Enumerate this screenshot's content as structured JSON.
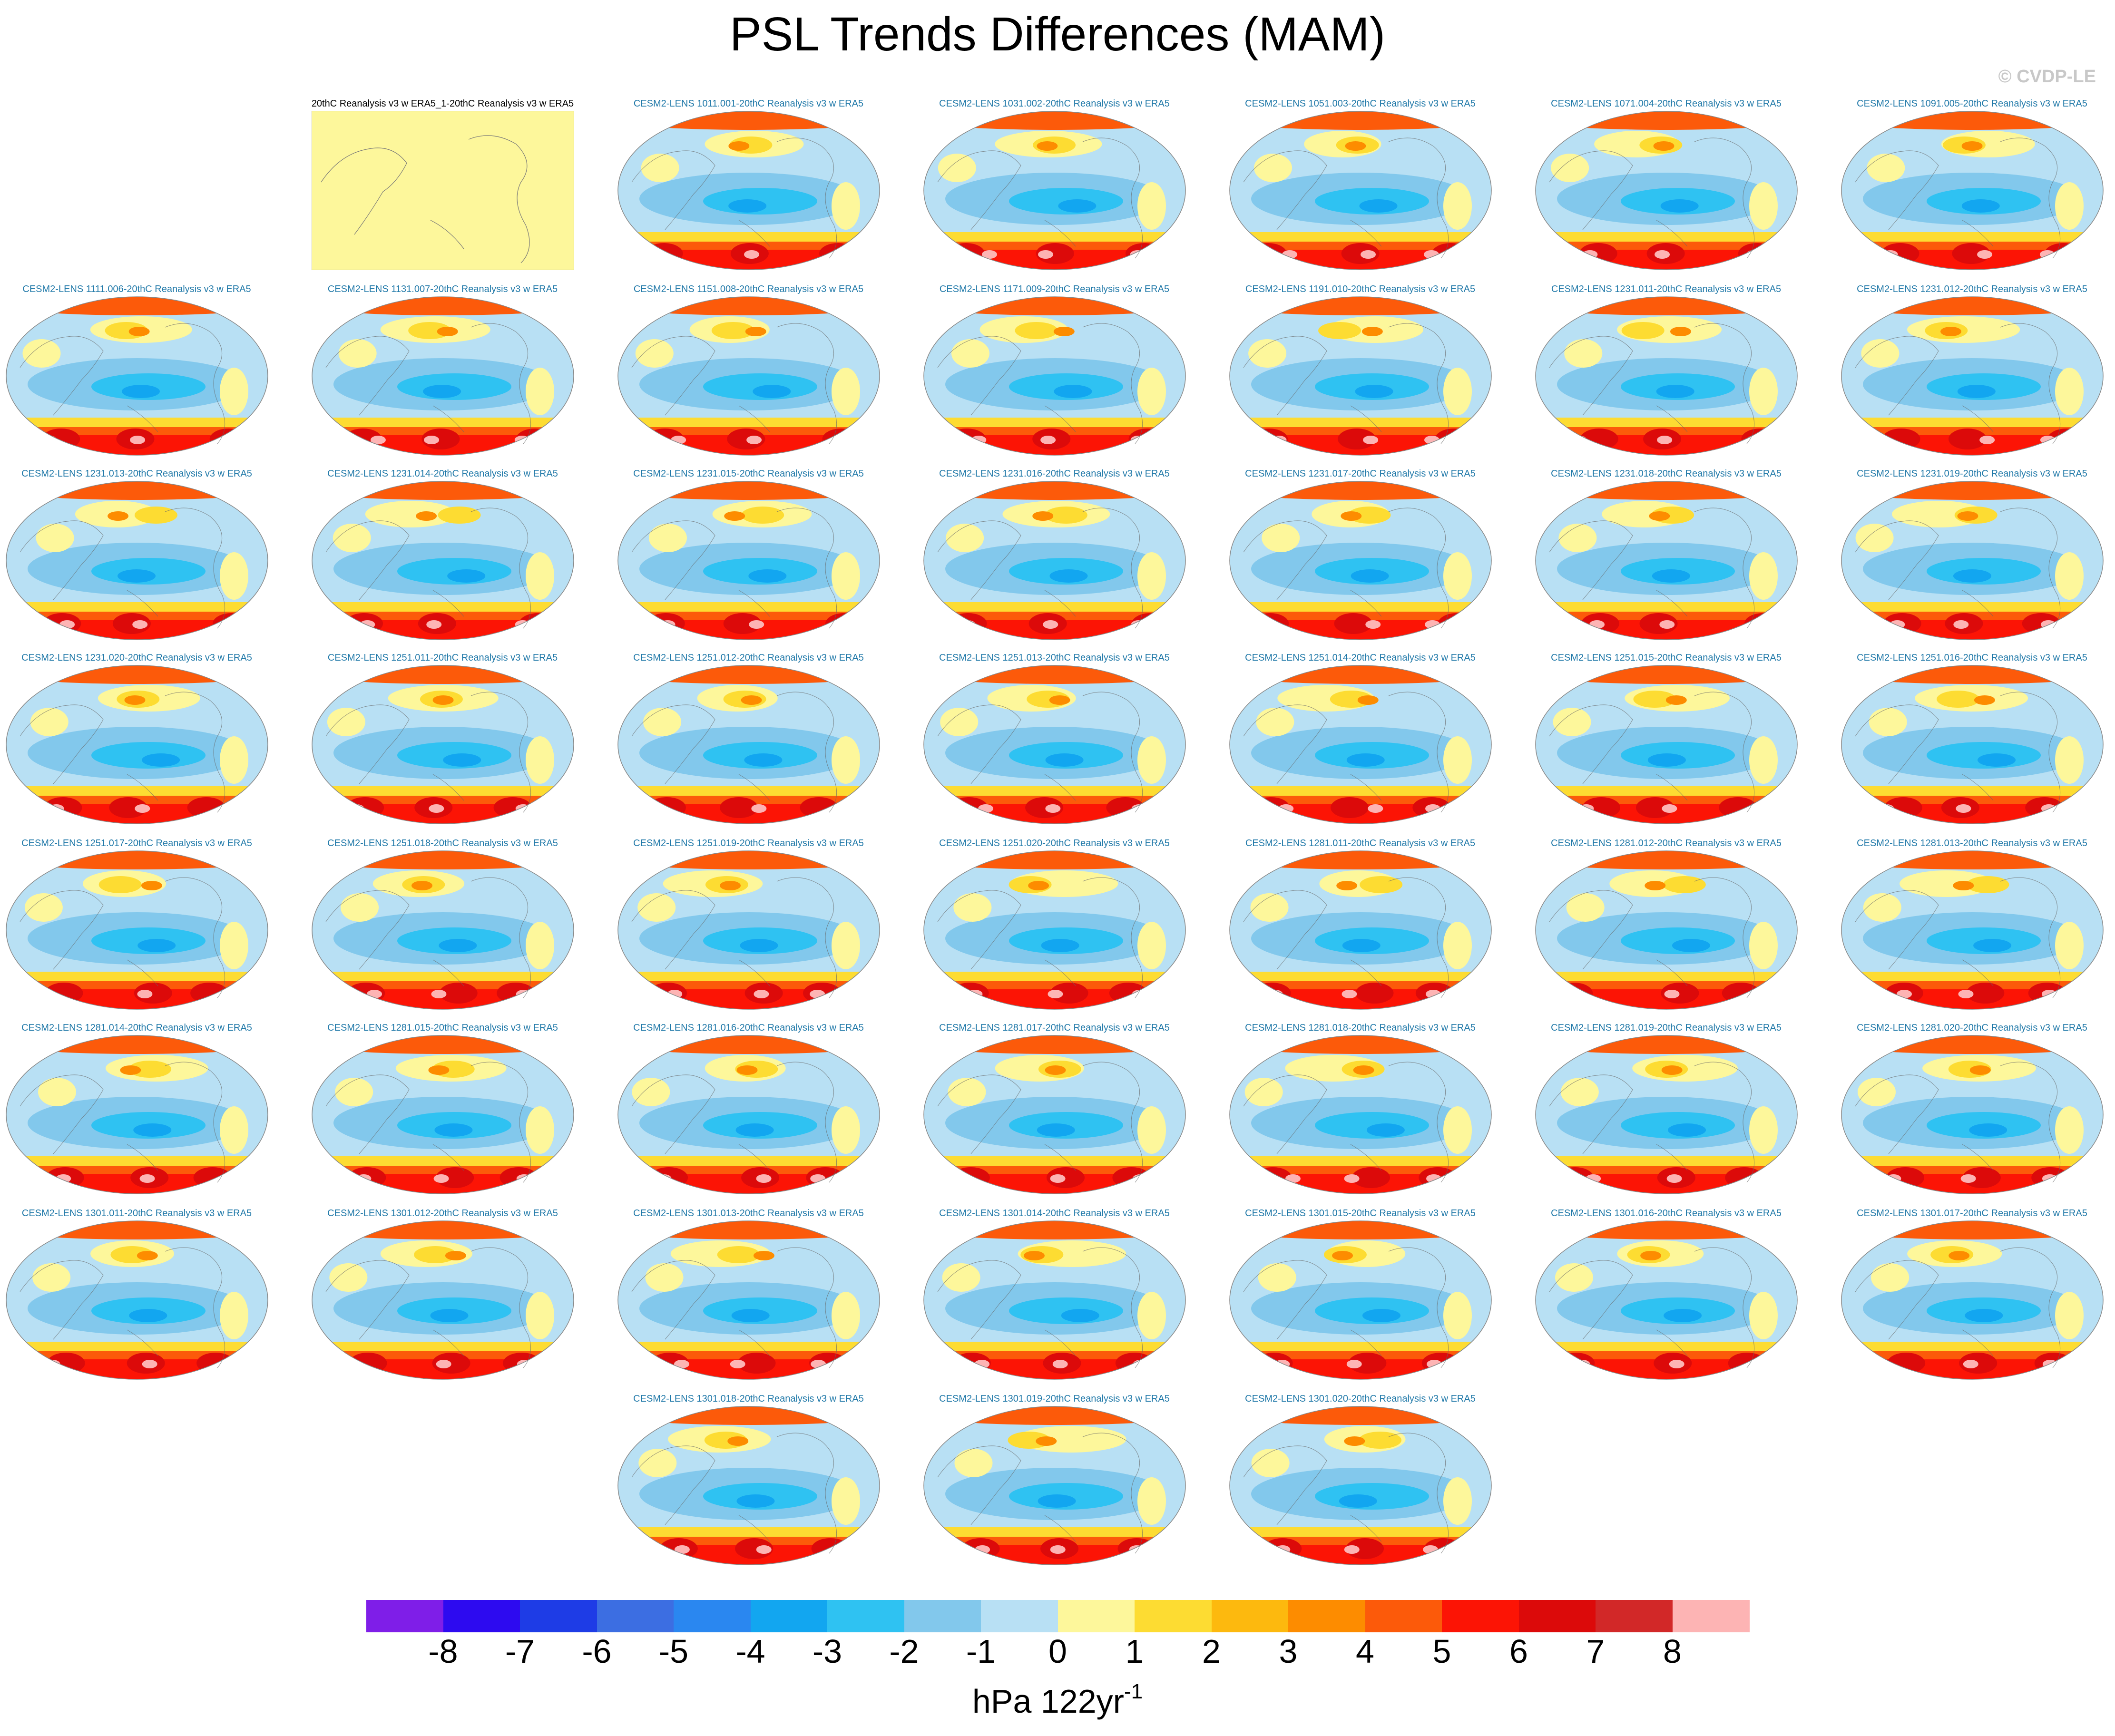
{
  "title": "PSL Trends Differences (MAM)",
  "watermark": "© CVDP-LE",
  "chart_data": {
    "type": "contour-map-panels",
    "projection": "Robinson (Pacific-centered)",
    "variable": "PSL trend difference",
    "season": "MAM",
    "units_main": "hPa 122yr",
    "units_exp": "-1",
    "colorbar": {
      "levels": [
        "-8",
        "-7",
        "-6",
        "-5",
        "-4",
        "-3",
        "-2",
        "-1",
        "0",
        "1",
        "2",
        "3",
        "4",
        "5",
        "6",
        "7",
        "8"
      ],
      "colors": [
        "#7f1ee8",
        "#2d0af0",
        "#1e3ce6",
        "#3c6ee2",
        "#2a87f0",
        "#12a6f0",
        "#2fc2f2",
        "#82c8ec",
        "#b8e0f4",
        "#fdf79b",
        "#fddc32",
        "#fdb90e",
        "#fd8c00",
        "#fc5a0a",
        "#fc1405",
        "#dc0a0a",
        "#d22828",
        "#fdb4b4"
      ]
    },
    "panels": [
      {
        "title": "20thC Reanalysis v3 w ERA5_1-20thC Reanalysis v3 w ERA5",
        "ref": true
      },
      {
        "title": "CESM2-LENS 1011.001-20thC Reanalysis v3 w ERA5"
      },
      {
        "title": "CESM2-LENS 1031.002-20thC Reanalysis v3 w ERA5"
      },
      {
        "title": "CESM2-LENS 1051.003-20thC Reanalysis v3 w ERA5"
      },
      {
        "title": "CESM2-LENS 1071.004-20thC Reanalysis v3 w ERA5"
      },
      {
        "title": "CESM2-LENS 1091.005-20thC Reanalysis v3 w ERA5"
      },
      {
        "title": "CESM2-LENS 1111.006-20thC Reanalysis v3 w ERA5"
      },
      {
        "title": "CESM2-LENS 1131.007-20thC Reanalysis v3 w ERA5"
      },
      {
        "title": "CESM2-LENS 1151.008-20thC Reanalysis v3 w ERA5"
      },
      {
        "title": "CESM2-LENS 1171.009-20thC Reanalysis v3 w ERA5"
      },
      {
        "title": "CESM2-LENS 1191.010-20thC Reanalysis v3 w ERA5"
      },
      {
        "title": "CESM2-LENS 1231.011-20thC Reanalysis v3 w ERA5"
      },
      {
        "title": "CESM2-LENS 1231.012-20thC Reanalysis v3 w ERA5"
      },
      {
        "title": "CESM2-LENS 1231.013-20thC Reanalysis v3 w ERA5"
      },
      {
        "title": "CESM2-LENS 1231.014-20thC Reanalysis v3 w ERA5"
      },
      {
        "title": "CESM2-LENS 1231.015-20thC Reanalysis v3 w ERA5"
      },
      {
        "title": "CESM2-LENS 1231.016-20thC Reanalysis v3 w ERA5"
      },
      {
        "title": "CESM2-LENS 1231.017-20thC Reanalysis v3 w ERA5"
      },
      {
        "title": "CESM2-LENS 1231.018-20thC Reanalysis v3 w ERA5"
      },
      {
        "title": "CESM2-LENS 1231.019-20thC Reanalysis v3 w ERA5"
      },
      {
        "title": "CESM2-LENS 1231.020-20thC Reanalysis v3 w ERA5"
      },
      {
        "title": "CESM2-LENS 1251.011-20thC Reanalysis v3 w ERA5"
      },
      {
        "title": "CESM2-LENS 1251.012-20thC Reanalysis v3 w ERA5"
      },
      {
        "title": "CESM2-LENS 1251.013-20thC Reanalysis v3 w ERA5"
      },
      {
        "title": "CESM2-LENS 1251.014-20thC Reanalysis v3 w ERA5"
      },
      {
        "title": "CESM2-LENS 1251.015-20thC Reanalysis v3 w ERA5"
      },
      {
        "title": "CESM2-LENS 1251.016-20thC Reanalysis v3 w ERA5"
      },
      {
        "title": "CESM2-LENS 1251.017-20thC Reanalysis v3 w ERA5"
      },
      {
        "title": "CESM2-LENS 1251.018-20thC Reanalysis v3 w ERA5"
      },
      {
        "title": "CESM2-LENS 1251.019-20thC Reanalysis v3 w ERA5"
      },
      {
        "title": "CESM2-LENS 1251.020-20thC Reanalysis v3 w ERA5"
      },
      {
        "title": "CESM2-LENS 1281.011-20thC Reanalysis v3 w ERA5"
      },
      {
        "title": "CESM2-LENS 1281.012-20thC Reanalysis v3 w ERA5"
      },
      {
        "title": "CESM2-LENS 1281.013-20thC Reanalysis v3 w ERA5"
      },
      {
        "title": "CESM2-LENS 1281.014-20thC Reanalysis v3 w ERA5"
      },
      {
        "title": "CESM2-LENS 1281.015-20thC Reanalysis v3 w ERA5"
      },
      {
        "title": "CESM2-LENS 1281.016-20thC Reanalysis v3 w ERA5"
      },
      {
        "title": "CESM2-LENS 1281.017-20thC Reanalysis v3 w ERA5"
      },
      {
        "title": "CESM2-LENS 1281.018-20thC Reanalysis v3 w ERA5"
      },
      {
        "title": "CESM2-LENS 1281.019-20thC Reanalysis v3 w ERA5"
      },
      {
        "title": "CESM2-LENS 1281.020-20thC Reanalysis v3 w ERA5"
      },
      {
        "title": "CESM2-LENS 1301.011-20thC Reanalysis v3 w ERA5"
      },
      {
        "title": "CESM2-LENS 1301.012-20thC Reanalysis v3 w ERA5"
      },
      {
        "title": "CESM2-LENS 1301.013-20thC Reanalysis v3 w ERA5"
      },
      {
        "title": "CESM2-LENS 1301.014-20thC Reanalysis v3 w ERA5"
      },
      {
        "title": "CESM2-LENS 1301.015-20thC Reanalysis v3 w ERA5"
      },
      {
        "title": "CESM2-LENS 1301.016-20thC Reanalysis v3 w ERA5"
      },
      {
        "title": "CESM2-LENS 1301.017-20thC Reanalysis v3 w ERA5"
      },
      {
        "title": "CESM2-LENS 1301.018-20thC Reanalysis v3 w ERA5"
      },
      {
        "title": "CESM2-LENS 1301.019-20thC Reanalysis v3 w ERA5"
      },
      {
        "title": "CESM2-LENS 1301.020-20thC Reanalysis v3 w ERA5"
      }
    ]
  }
}
